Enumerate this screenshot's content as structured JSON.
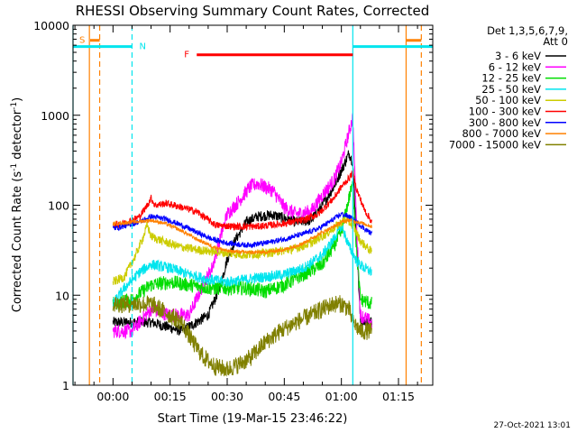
{
  "chart_data": {
    "type": "line",
    "title": "RHESSI Observing Summary Count Rates, Corrected",
    "xlabel": "Start Time (19-Mar-15 23:46:22)",
    "ylabel_main": "Corrected Count Rate (s",
    "ylabel_sup1": "-1",
    "ylabel_mid": " detector",
    "ylabel_sup2": "-1",
    "ylabel_end": ")",
    "yscale": "log",
    "ylim": [
      1,
      10000
    ],
    "xlim_minutes": [
      -10.5,
      84
    ],
    "x_ticks": [
      {
        "m": 0,
        "label": "00:00"
      },
      {
        "m": 15,
        "label": "00:15"
      },
      {
        "m": 30,
        "label": "00:30"
      },
      {
        "m": 45,
        "label": "00:45"
      },
      {
        "m": 60,
        "label": "01:00"
      },
      {
        "m": 75,
        "label": "01:15"
      }
    ],
    "y_ticks": [
      {
        "v": 1,
        "label": "1"
      },
      {
        "v": 10,
        "label": "10"
      },
      {
        "v": 100,
        "label": "100"
      },
      {
        "v": 1000,
        "label": "1000"
      },
      {
        "v": 10000,
        "label": "10000"
      }
    ],
    "legend_header1": "Det 1,3,5,6,7,9,",
    "legend_header2": "Att 0",
    "timestamp": "27-Oct-2021 13:01",
    "flags": [
      {
        "label": "S",
        "color": "#ff8000",
        "segments": [
          [
            -6,
            -3.5
          ],
          [
            77,
            81
          ]
        ],
        "y": 6800
      },
      {
        "label": "N",
        "color": "#00e5ee",
        "segments": [
          [
            -10.5,
            5
          ],
          [
            63,
            84
          ]
        ],
        "y": 5800
      },
      {
        "label": "F",
        "color": "#ff0000",
        "segments": [
          [
            22,
            63
          ]
        ],
        "y": 4700
      }
    ],
    "vlines": [
      {
        "m": -10.5,
        "color": "#00e5ee",
        "style": "solid"
      },
      {
        "m": -6.2,
        "color": "#ff8000",
        "style": "solid"
      },
      {
        "m": -3.5,
        "color": "#ff8000",
        "style": "dashed"
      },
      {
        "m": 5,
        "color": "#00e5ee",
        "style": "dashed"
      },
      {
        "m": 63,
        "color": "#00e5ee",
        "style": "solid"
      },
      {
        "m": 77,
        "color": "#ff8000",
        "style": "solid"
      },
      {
        "m": 81,
        "color": "#ff8000",
        "style": "dashed"
      }
    ],
    "series": [
      {
        "name": "3 - 6 keV",
        "color": "#000000",
        "noise": 0.06,
        "points": [
          [
            0,
            5
          ],
          [
            10,
            5
          ],
          [
            18,
            4
          ],
          [
            22,
            5
          ],
          [
            25,
            6
          ],
          [
            28,
            12
          ],
          [
            30,
            25
          ],
          [
            32,
            40
          ],
          [
            35,
            65
          ],
          [
            38,
            75
          ],
          [
            42,
            78
          ],
          [
            45,
            72
          ],
          [
            48,
            65
          ],
          [
            52,
            68
          ],
          [
            55,
            100
          ],
          [
            58,
            160
          ],
          [
            61,
            300
          ],
          [
            62,
            380
          ],
          [
            63,
            300
          ],
          [
            64,
            40
          ],
          [
            65,
            5
          ],
          [
            68,
            5
          ]
        ]
      },
      {
        "name": "6 - 12 keV",
        "color": "#ff00ff",
        "noise": 0.08,
        "points": [
          [
            0,
            4
          ],
          [
            5,
            4
          ],
          [
            10,
            7
          ],
          [
            15,
            6
          ],
          [
            20,
            6
          ],
          [
            24,
            14
          ],
          [
            26,
            20
          ],
          [
            28,
            40
          ],
          [
            30,
            80
          ],
          [
            33,
            110
          ],
          [
            36,
            160
          ],
          [
            38,
            175
          ],
          [
            42,
            145
          ],
          [
            45,
            95
          ],
          [
            48,
            80
          ],
          [
            52,
            85
          ],
          [
            55,
            130
          ],
          [
            58,
            190
          ],
          [
            60,
            300
          ],
          [
            62,
            650
          ],
          [
            63,
            950
          ],
          [
            64,
            60
          ],
          [
            65,
            6
          ],
          [
            68,
            5
          ]
        ]
      },
      {
        "name": "12 - 25 keV",
        "color": "#00dd00",
        "noise": 0.08,
        "points": [
          [
            0,
            8
          ],
          [
            5,
            9
          ],
          [
            10,
            13
          ],
          [
            15,
            14
          ],
          [
            20,
            13
          ],
          [
            25,
            12
          ],
          [
            30,
            12
          ],
          [
            35,
            12
          ],
          [
            40,
            11
          ],
          [
            45,
            13
          ],
          [
            50,
            17
          ],
          [
            55,
            22
          ],
          [
            58,
            35
          ],
          [
            60,
            50
          ],
          [
            62,
            120
          ],
          [
            63,
            170
          ],
          [
            64,
            30
          ],
          [
            65,
            9
          ],
          [
            68,
            8
          ]
        ]
      },
      {
        "name": "25 - 50 keV",
        "color": "#00e5ee",
        "noise": 0.06,
        "points": [
          [
            0,
            8
          ],
          [
            3,
            12
          ],
          [
            7,
            18
          ],
          [
            10,
            22
          ],
          [
            15,
            20
          ],
          [
            20,
            17
          ],
          [
            25,
            15
          ],
          [
            30,
            14
          ],
          [
            35,
            15
          ],
          [
            40,
            16
          ],
          [
            45,
            17
          ],
          [
            50,
            20
          ],
          [
            55,
            28
          ],
          [
            58,
            42
          ],
          [
            60,
            60
          ],
          [
            62,
            35
          ],
          [
            64,
            24
          ],
          [
            66,
            20
          ],
          [
            68,
            18
          ]
        ]
      },
      {
        "name": "50 - 100 keV",
        "color": "#cccc00",
        "noise": 0.05,
        "points": [
          [
            0,
            14
          ],
          [
            3,
            16
          ],
          [
            6,
            28
          ],
          [
            8,
            45
          ],
          [
            9,
            60
          ],
          [
            10,
            45
          ],
          [
            13,
            40
          ],
          [
            17,
            35
          ],
          [
            22,
            32
          ],
          [
            28,
            30
          ],
          [
            35,
            28
          ],
          [
            42,
            30
          ],
          [
            48,
            33
          ],
          [
            52,
            38
          ],
          [
            56,
            48
          ],
          [
            59,
            60
          ],
          [
            61,
            70
          ],
          [
            63,
            60
          ],
          [
            65,
            40
          ],
          [
            68,
            30
          ]
        ]
      },
      {
        "name": "100 - 300 keV",
        "color": "#ff0000",
        "noise": 0.04,
        "points": [
          [
            0,
            60
          ],
          [
            4,
            65
          ],
          [
            7,
            75
          ],
          [
            9,
            100
          ],
          [
            10,
            120
          ],
          [
            11,
            100
          ],
          [
            14,
            105
          ],
          [
            18,
            95
          ],
          [
            22,
            85
          ],
          [
            27,
            60
          ],
          [
            32,
            58
          ],
          [
            38,
            58
          ],
          [
            44,
            62
          ],
          [
            50,
            68
          ],
          [
            54,
            80
          ],
          [
            58,
            120
          ],
          [
            60,
            160
          ],
          [
            62,
            200
          ],
          [
            63,
            230
          ],
          [
            64,
            150
          ],
          [
            66,
            90
          ],
          [
            68,
            65
          ]
        ]
      },
      {
        "name": "300 - 800 keV",
        "color": "#0000ff",
        "noise": 0.03,
        "points": [
          [
            0,
            55
          ],
          [
            4,
            60
          ],
          [
            8,
            68
          ],
          [
            10,
            75
          ],
          [
            14,
            70
          ],
          [
            18,
            60
          ],
          [
            22,
            50
          ],
          [
            26,
            42
          ],
          [
            30,
            38
          ],
          [
            35,
            36
          ],
          [
            40,
            38
          ],
          [
            45,
            42
          ],
          [
            50,
            48
          ],
          [
            54,
            55
          ],
          [
            58,
            70
          ],
          [
            60,
            80
          ],
          [
            62,
            75
          ],
          [
            64,
            65
          ],
          [
            66,
            55
          ],
          [
            68,
            48
          ]
        ]
      },
      {
        "name": "800 - 7000 keV",
        "color": "#ff8000",
        "noise": 0.02,
        "points": [
          [
            0,
            62
          ],
          [
            5,
            65
          ],
          [
            10,
            68
          ],
          [
            14,
            62
          ],
          [
            18,
            52
          ],
          [
            22,
            42
          ],
          [
            26,
            35
          ],
          [
            30,
            31
          ],
          [
            35,
            30
          ],
          [
            40,
            30
          ],
          [
            45,
            32
          ],
          [
            50,
            38
          ],
          [
            55,
            50
          ],
          [
            58,
            58
          ],
          [
            60,
            65
          ],
          [
            62,
            68
          ],
          [
            64,
            66
          ],
          [
            66,
            62
          ],
          [
            68,
            58
          ]
        ]
      },
      {
        "name": "7000 - 15000 keV",
        "color": "#808000",
        "noise": 0.1,
        "points": [
          [
            0,
            8
          ],
          [
            5,
            8
          ],
          [
            10,
            8
          ],
          [
            15,
            6
          ],
          [
            18,
            5
          ],
          [
            21,
            3
          ],
          [
            24,
            2
          ],
          [
            27,
            1.6
          ],
          [
            30,
            1.5
          ],
          [
            33,
            1.7
          ],
          [
            36,
            2
          ],
          [
            40,
            3
          ],
          [
            44,
            4
          ],
          [
            48,
            5
          ],
          [
            52,
            6
          ],
          [
            55,
            7
          ],
          [
            58,
            8
          ],
          [
            60,
            8
          ],
          [
            62,
            7
          ],
          [
            63,
            5
          ],
          [
            65,
            4
          ],
          [
            68,
            4
          ]
        ]
      }
    ]
  }
}
